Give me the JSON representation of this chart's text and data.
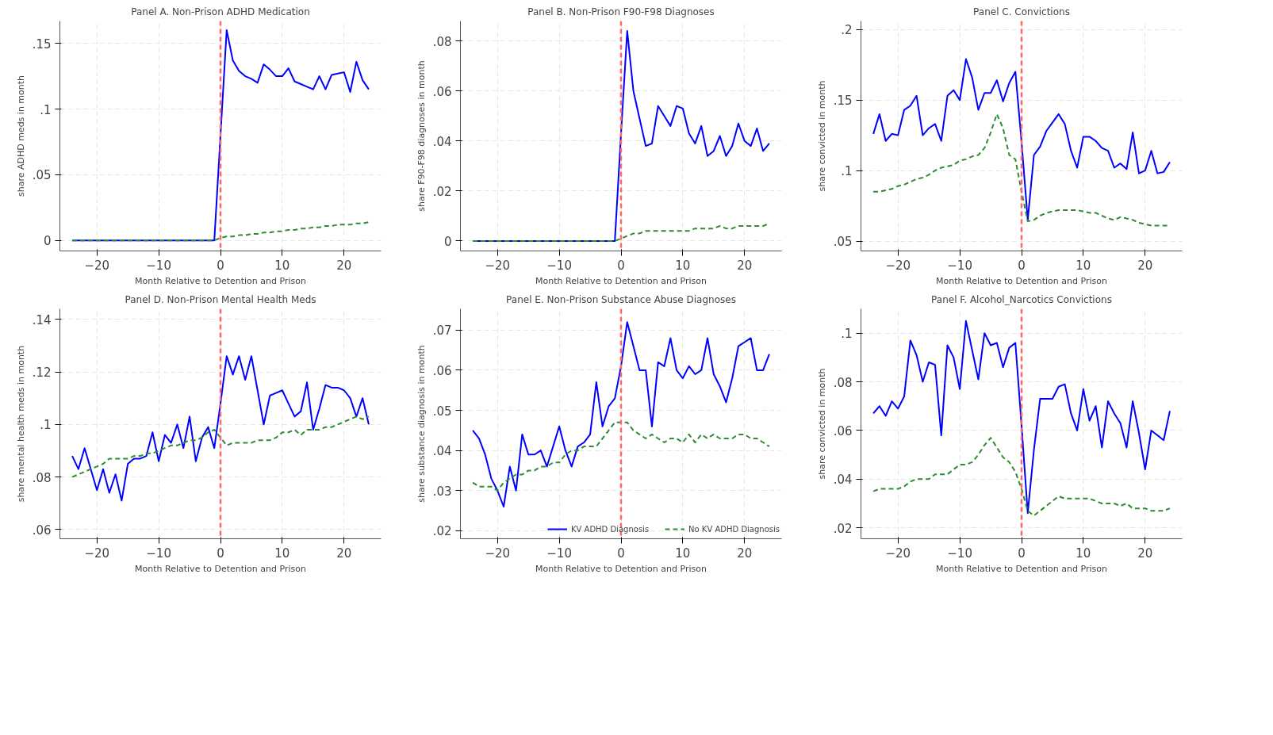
{
  "chart_data": [
    {
      "type": "line",
      "title": "Panel A. Non-Prison ADHD Medication",
      "xlabel": "Month Relative to Detention and Prison",
      "ylabel": "share ADHD meds in month",
      "x": [
        -24,
        -23,
        -22,
        -21,
        -20,
        -19,
        -18,
        -17,
        -16,
        -15,
        -14,
        -13,
        -12,
        -11,
        -10,
        -9,
        -8,
        -7,
        -6,
        -5,
        -4,
        -3,
        -2,
        -1,
        0,
        1,
        2,
        3,
        4,
        5,
        6,
        7,
        8,
        9,
        10,
        11,
        12,
        13,
        14,
        15,
        16,
        17,
        18,
        19,
        20,
        21,
        22,
        23,
        24
      ],
      "xlim": [
        -26,
        26
      ],
      "xticks": [
        -20,
        -10,
        0,
        10,
        20
      ],
      "ylim": [
        -0.008,
        0.167
      ],
      "yticks": [
        0,
        {
          "value": 0.05,
          "label": ".05"
        },
        {
          "value": 0.1,
          "label": ".1"
        },
        {
          "value": 0.15,
          "label": ".15"
        }
      ],
      "grid": true,
      "ref_lines": [
        {
          "axis": "x",
          "value": 0,
          "color": "#ff6666",
          "line_style": "dashed"
        }
      ],
      "series": [
        {
          "color": "#0000ff",
          "line_style": "solid",
          "values": [
            0,
            0,
            0,
            0,
            0,
            0,
            0,
            0,
            0,
            0,
            0,
            0,
            0,
            0,
            0,
            0,
            0,
            0,
            0,
            0,
            0,
            0,
            0,
            0,
            0.08,
            0.16,
            0.137,
            0.129,
            0.125,
            0.123,
            0.12,
            0.134,
            0.13,
            0.125,
            0.125,
            0.131,
            0.121,
            0.119,
            0.117,
            0.115,
            0.125,
            0.115,
            0.126,
            0.127,
            0.128,
            0.113,
            0.136,
            0.122,
            0.115
          ]
        },
        {
          "color": "#2e8b2e",
          "line_style": "dashed",
          "values": [
            0,
            0,
            0,
            0,
            0,
            0,
            0,
            0,
            0,
            0,
            0,
            0,
            0,
            0,
            0,
            0,
            0,
            0,
            0,
            0,
            0,
            0,
            0,
            0,
            0.002,
            0.003,
            0.003,
            0.004,
            0.004,
            0.005,
            0.005,
            0.006,
            0.006,
            0.007,
            0.007,
            0.008,
            0.008,
            0.009,
            0.009,
            0.01,
            0.01,
            0.011,
            0.011,
            0.012,
            0.012,
            0.012,
            0.013,
            0.013,
            0.014
          ]
        }
      ]
    },
    {
      "type": "line",
      "title": "Panel B. Non-Prison F90-F98 Diagnoses",
      "xlabel": "Month Relative to Detention and Prison",
      "ylabel": "share F90-F98 diagnoses in month",
      "x": [
        -24,
        -23,
        -22,
        -21,
        -20,
        -19,
        -18,
        -17,
        -16,
        -15,
        -14,
        -13,
        -12,
        -11,
        -10,
        -9,
        -8,
        -7,
        -6,
        -5,
        -4,
        -3,
        -2,
        -1,
        0,
        1,
        2,
        3,
        4,
        5,
        6,
        7,
        8,
        9,
        10,
        11,
        12,
        13,
        14,
        15,
        16,
        17,
        18,
        19,
        20,
        21,
        22,
        23,
        24
      ],
      "xlim": [
        -26,
        26
      ],
      "xticks": [
        -20,
        -10,
        0,
        10,
        20
      ],
      "ylim": [
        -0.004,
        0.088
      ],
      "yticks": [
        0,
        {
          "value": 0.02,
          "label": ".02"
        },
        {
          "value": 0.04,
          "label": ".04"
        },
        {
          "value": 0.06,
          "label": ".06"
        },
        {
          "value": 0.08,
          "label": ".08"
        }
      ],
      "grid": true,
      "ref_lines": [
        {
          "axis": "x",
          "value": 0,
          "color": "#ff6666",
          "line_style": "dashed"
        }
      ],
      "series": [
        {
          "color": "#0000ff",
          "line_style": "solid",
          "values": [
            0,
            0,
            0,
            0,
            0,
            0,
            0,
            0,
            0,
            0,
            0,
            0,
            0,
            0,
            0,
            0,
            0,
            0,
            0,
            0,
            0,
            0,
            0,
            0,
            0.043,
            0.084,
            0.06,
            0.049,
            0.038,
            0.039,
            0.054,
            0.05,
            0.046,
            0.054,
            0.053,
            0.043,
            0.039,
            0.046,
            0.034,
            0.036,
            0.042,
            0.034,
            0.038,
            0.047,
            0.04,
            0.038,
            0.045,
            0.036,
            0.039
          ]
        },
        {
          "color": "#2e8b2e",
          "line_style": "dashed",
          "values": [
            0,
            0,
            0,
            0,
            0,
            0,
            0,
            0,
            0,
            0,
            0,
            0,
            0,
            0,
            0,
            0,
            0,
            0,
            0,
            0,
            0,
            0,
            0,
            0,
            0.001,
            0.002,
            0.003,
            0.003,
            0.004,
            0.004,
            0.004,
            0.004,
            0.004,
            0.004,
            0.004,
            0.004,
            0.005,
            0.005,
            0.005,
            0.005,
            0.006,
            0.005,
            0.005,
            0.006,
            0.006,
            0.006,
            0.006,
            0.006,
            0.007
          ]
        }
      ]
    },
    {
      "type": "line",
      "title": "Panel C. Convictions",
      "xlabel": "Month Relative to Detention and Prison",
      "ylabel": "share convicted in month",
      "x": [
        -24,
        -23,
        -22,
        -21,
        -20,
        -19,
        -18,
        -17,
        -16,
        -15,
        -14,
        -13,
        -12,
        -11,
        -10,
        -9,
        -8,
        -7,
        -6,
        -5,
        -4,
        -3,
        -2,
        -1,
        0,
        1,
        2,
        3,
        4,
        5,
        6,
        7,
        8,
        9,
        10,
        11,
        12,
        13,
        14,
        15,
        16,
        17,
        18,
        19,
        20,
        21,
        22,
        23,
        24
      ],
      "xlim": [
        -26,
        26
      ],
      "xticks": [
        -20,
        -10,
        0,
        10,
        20
      ],
      "ylim": [
        0.043,
        0.206
      ],
      "yticks": [
        {
          "value": 0.05,
          "label": ".05"
        },
        {
          "value": 0.1,
          "label": ".1"
        },
        {
          "value": 0.15,
          "label": ".15"
        },
        {
          "value": 0.2,
          "label": ".2"
        }
      ],
      "grid": true,
      "ref_lines": [
        {
          "axis": "x",
          "value": 0,
          "color": "#ff6666",
          "line_style": "dashed"
        }
      ],
      "series": [
        {
          "color": "#0000ff",
          "line_style": "solid",
          "values": [
            0.126,
            0.14,
            0.121,
            0.126,
            0.125,
            0.143,
            0.146,
            0.153,
            0.125,
            0.13,
            0.133,
            0.121,
            0.153,
            0.157,
            0.15,
            0.179,
            0.166,
            0.143,
            0.155,
            0.155,
            0.164,
            0.149,
            0.162,
            0.17,
            0.12,
            0.065,
            0.111,
            0.117,
            0.128,
            0.134,
            0.14,
            0.133,
            0.114,
            0.102,
            0.124,
            0.124,
            0.121,
            0.116,
            0.114,
            0.102,
            0.105,
            0.101,
            0.127,
            0.098,
            0.1,
            0.114,
            0.098,
            0.099,
            0.106
          ]
        },
        {
          "color": "#2e8b2e",
          "line_style": "dashed",
          "values": [
            0.085,
            0.085,
            0.086,
            0.087,
            0.089,
            0.09,
            0.092,
            0.094,
            0.095,
            0.097,
            0.1,
            0.102,
            0.103,
            0.104,
            0.107,
            0.108,
            0.11,
            0.111,
            0.116,
            0.127,
            0.14,
            0.13,
            0.111,
            0.108,
            0.085,
            0.064,
            0.065,
            0.068,
            0.07,
            0.071,
            0.072,
            0.072,
            0.072,
            0.072,
            0.071,
            0.07,
            0.07,
            0.068,
            0.066,
            0.065,
            0.067,
            0.066,
            0.065,
            0.063,
            0.062,
            0.061,
            0.061,
            0.061,
            0.061
          ]
        }
      ]
    },
    {
      "type": "line",
      "title": "Panel D. Non-Prison Mental Health Meds",
      "xlabel": "Month Relative to Detention and Prison",
      "ylabel": "share mental health meds in month",
      "x": [
        -24,
        -23,
        -22,
        -21,
        -20,
        -19,
        -18,
        -17,
        -16,
        -15,
        -14,
        -13,
        -12,
        -11,
        -10,
        -9,
        -8,
        -7,
        -6,
        -5,
        -4,
        -3,
        -2,
        -1,
        0,
        1,
        2,
        3,
        4,
        5,
        6,
        7,
        8,
        9,
        10,
        11,
        12,
        13,
        14,
        15,
        16,
        17,
        18,
        19,
        20,
        21,
        22,
        23,
        24
      ],
      "xlim": [
        -26,
        26
      ],
      "xticks": [
        -20,
        -10,
        0,
        10,
        20
      ],
      "ylim": [
        0.0565,
        0.144
      ],
      "yticks": [
        {
          "value": 0.06,
          "label": ".06"
        },
        {
          "value": 0.08,
          "label": ".08"
        },
        {
          "value": 0.1,
          "label": ".1"
        },
        {
          "value": 0.12,
          "label": ".12"
        },
        {
          "value": 0.14,
          "label": ".14"
        }
      ],
      "grid": true,
      "ref_lines": [
        {
          "axis": "x",
          "value": 0,
          "color": "#ff6666",
          "line_style": "dashed"
        }
      ],
      "series": [
        {
          "color": "#0000ff",
          "line_style": "solid",
          "values": [
            0.088,
            0.083,
            0.091,
            0.083,
            0.075,
            0.083,
            0.074,
            0.081,
            0.071,
            0.085,
            0.087,
            0.087,
            0.088,
            0.097,
            0.086,
            0.096,
            0.093,
            0.1,
            0.091,
            0.103,
            0.086,
            0.095,
            0.099,
            0.091,
            0.108,
            0.126,
            0.119,
            0.126,
            0.117,
            0.126,
            0.113,
            0.1,
            0.111,
            0.112,
            0.113,
            0.108,
            0.103,
            0.105,
            0.116,
            0.098,
            0.106,
            0.115,
            0.114,
            0.114,
            0.113,
            0.11,
            0.103,
            0.11,
            0.1
          ]
        },
        {
          "color": "#2e8b2e",
          "line_style": "dashed",
          "values": [
            0.08,
            0.081,
            0.082,
            0.083,
            0.084,
            0.085,
            0.087,
            0.087,
            0.087,
            0.087,
            0.088,
            0.088,
            0.089,
            0.089,
            0.09,
            0.091,
            0.092,
            0.092,
            0.093,
            0.094,
            0.094,
            0.095,
            0.097,
            0.098,
            0.095,
            0.092,
            0.093,
            0.093,
            0.093,
            0.093,
            0.094,
            0.094,
            0.094,
            0.095,
            0.097,
            0.097,
            0.098,
            0.096,
            0.098,
            0.098,
            0.098,
            0.099,
            0.099,
            0.1,
            0.101,
            0.102,
            0.103,
            0.102,
            0.103
          ]
        }
      ]
    },
    {
      "type": "line",
      "title": "Panel E. Non-Prison Substance Abuse Diagnoses",
      "xlabel": "Month Relative to Detention and Prison",
      "ylabel": "share substance diagnosis in month",
      "legend": "bottom right",
      "x": [
        -24,
        -23,
        -22,
        -21,
        -20,
        -19,
        -18,
        -17,
        -16,
        -15,
        -14,
        -13,
        -12,
        -11,
        -10,
        -9,
        -8,
        -7,
        -6,
        -5,
        -4,
        -3,
        -2,
        -1,
        0,
        1,
        2,
        3,
        4,
        5,
        6,
        7,
        8,
        9,
        10,
        11,
        12,
        13,
        14,
        15,
        16,
        17,
        18,
        19,
        20,
        21,
        22,
        23,
        24
      ],
      "xlim": [
        -26,
        26
      ],
      "xticks": [
        -20,
        -10,
        0,
        10,
        20
      ],
      "ylim": [
        0.018,
        0.0753
      ],
      "yticks": [
        {
          "value": 0.02,
          "label": ".02"
        },
        {
          "value": 0.03,
          "label": ".03"
        },
        {
          "value": 0.04,
          "label": ".04"
        },
        {
          "value": 0.05,
          "label": ".05"
        },
        {
          "value": 0.06,
          "label": ".06"
        },
        {
          "value": 0.07,
          "label": ".07"
        }
      ],
      "grid": true,
      "ref_lines": [
        {
          "axis": "x",
          "value": 0,
          "color": "#ff6666",
          "line_style": "dashed"
        }
      ],
      "series": [
        {
          "name": "KV ADHD Diagnosis",
          "color": "#0000ff",
          "line_style": "solid",
          "values": [
            0.045,
            0.043,
            0.039,
            0.033,
            0.03,
            0.026,
            0.036,
            0.03,
            0.044,
            0.039,
            0.039,
            0.04,
            0.036,
            0.041,
            0.046,
            0.04,
            0.036,
            0.041,
            0.042,
            0.044,
            0.057,
            0.046,
            0.051,
            0.053,
            0.061,
            0.072,
            0.066,
            0.06,
            0.06,
            0.046,
            0.062,
            0.061,
            0.068,
            0.06,
            0.058,
            0.061,
            0.059,
            0.06,
            0.068,
            0.059,
            0.056,
            0.052,
            0.058,
            0.066,
            0.067,
            0.068,
            0.06,
            0.06,
            0.064
          ]
        },
        {
          "name": "No KV ADHD Diagnosis",
          "color": "#2e8b2e",
          "line_style": "dashed",
          "values": [
            0.032,
            0.031,
            0.031,
            0.031,
            0.03,
            0.032,
            0.033,
            0.034,
            0.034,
            0.035,
            0.035,
            0.036,
            0.036,
            0.037,
            0.037,
            0.039,
            0.04,
            0.04,
            0.041,
            0.041,
            0.041,
            0.043,
            0.045,
            0.047,
            0.047,
            0.047,
            0.045,
            0.044,
            0.043,
            0.044,
            0.043,
            0.042,
            0.043,
            0.043,
            0.042,
            0.044,
            0.042,
            0.044,
            0.043,
            0.044,
            0.043,
            0.043,
            0.043,
            0.044,
            0.044,
            0.043,
            0.043,
            0.042,
            0.041
          ]
        }
      ]
    },
    {
      "type": "line",
      "title": "Panel F. Alcohol_Narcotics Convictions",
      "xlabel": "Month Relative to Detention and Prison",
      "ylabel": "share convicted in month",
      "x": [
        -24,
        -23,
        -22,
        -21,
        -20,
        -19,
        -18,
        -17,
        -16,
        -15,
        -14,
        -13,
        -12,
        -11,
        -10,
        -9,
        -8,
        -7,
        -6,
        -5,
        -4,
        -3,
        -2,
        -1,
        0,
        1,
        2,
        3,
        4,
        5,
        6,
        7,
        8,
        9,
        10,
        11,
        12,
        13,
        14,
        15,
        16,
        17,
        18,
        19,
        20,
        21,
        22,
        23,
        24
      ],
      "xlim": [
        -26,
        26
      ],
      "xticks": [
        -20,
        -10,
        0,
        10,
        20
      ],
      "ylim": [
        0.0155,
        0.11
      ],
      "yticks": [
        {
          "value": 0.02,
          "label": ".02"
        },
        {
          "value": 0.04,
          "label": ".04"
        },
        {
          "value": 0.06,
          "label": ".06"
        },
        {
          "value": 0.08,
          "label": ".08"
        },
        {
          "value": 0.1,
          "label": ".1"
        }
      ],
      "grid": true,
      "ref_lines": [
        {
          "axis": "x",
          "value": 0,
          "color": "#ff6666",
          "line_style": "dashed"
        }
      ],
      "series": [
        {
          "color": "#0000ff",
          "line_style": "solid",
          "values": [
            0.067,
            0.07,
            0.066,
            0.072,
            0.069,
            0.074,
            0.097,
            0.091,
            0.08,
            0.088,
            0.087,
            0.058,
            0.095,
            0.09,
            0.077,
            0.105,
            0.093,
            0.081,
            0.1,
            0.095,
            0.096,
            0.086,
            0.094,
            0.096,
            0.062,
            0.026,
            0.052,
            0.073,
            0.073,
            0.073,
            0.078,
            0.079,
            0.067,
            0.06,
            0.077,
            0.064,
            0.07,
            0.053,
            0.072,
            0.067,
            0.063,
            0.053,
            0.072,
            0.059,
            0.044,
            0.06,
            0.058,
            0.056,
            0.068
          ]
        },
        {
          "color": "#2e8b2e",
          "line_style": "dashed",
          "values": [
            0.035,
            0.036,
            0.036,
            0.036,
            0.036,
            0.037,
            0.039,
            0.04,
            0.04,
            0.04,
            0.042,
            0.042,
            0.042,
            0.044,
            0.046,
            0.046,
            0.047,
            0.05,
            0.054,
            0.057,
            0.053,
            0.049,
            0.047,
            0.043,
            0.036,
            0.027,
            0.025,
            0.027,
            0.029,
            0.031,
            0.033,
            0.032,
            0.032,
            0.032,
            0.032,
            0.032,
            0.031,
            0.03,
            0.03,
            0.03,
            0.029,
            0.03,
            0.028,
            0.028,
            0.028,
            0.027,
            0.027,
            0.027,
            0.028
          ]
        }
      ]
    }
  ]
}
